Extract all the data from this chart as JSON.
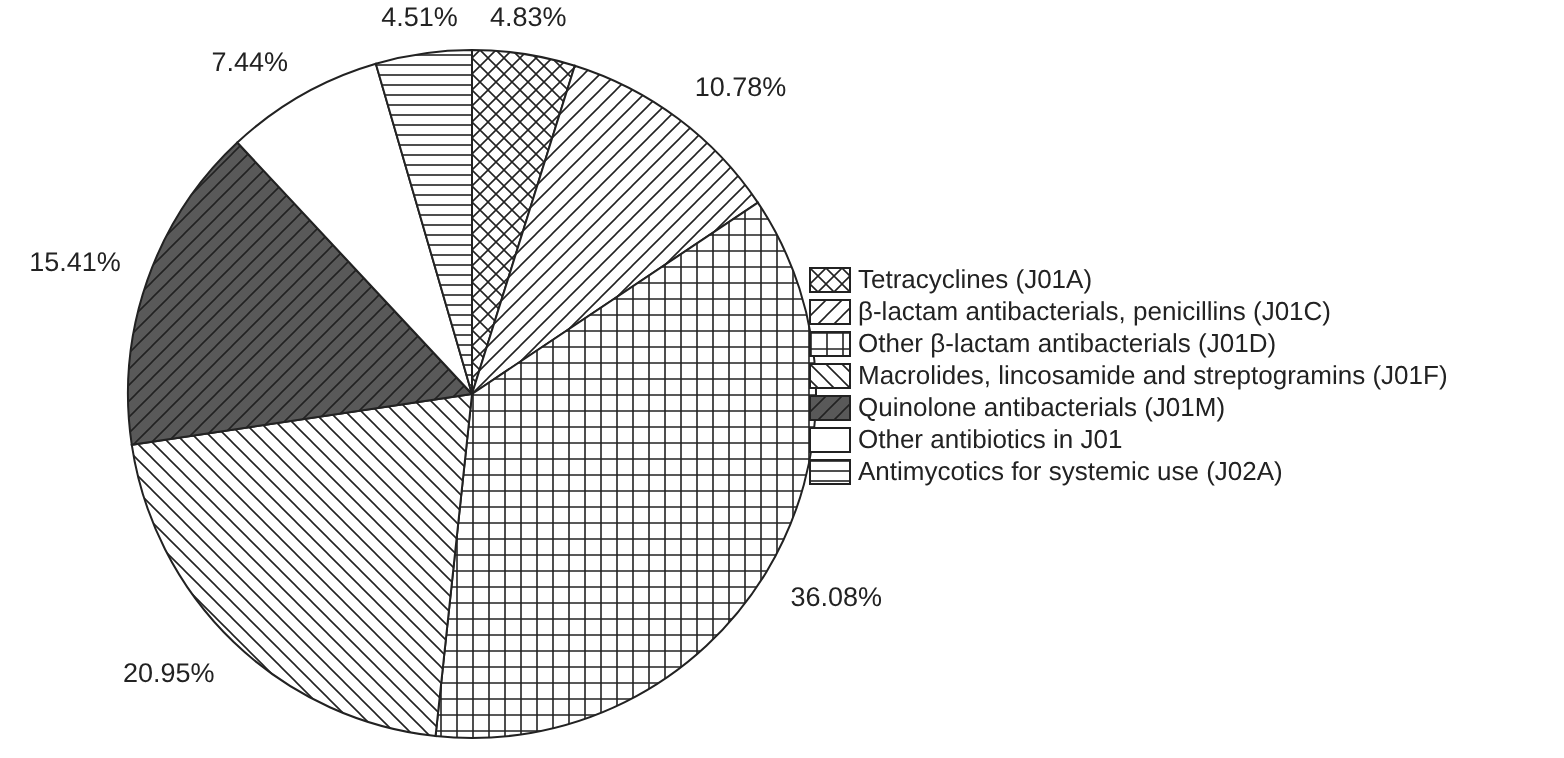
{
  "chart_data": {
    "type": "pie",
    "categories": [
      "Tetracyclines (J01A)",
      "β-lactam antibacterials, penicillins (J01C)",
      "Other β-lactam antibacterials (J01D)",
      "Macrolides, lincosamide and streptogramins (J01F)",
      "Quinolone antibacterials (J01M)",
      "Other antibiotics in J01",
      "Antimycotics for systemic use (J02A)"
    ],
    "values": [
      4.83,
      10.78,
      36.08,
      20.95,
      15.41,
      7.44,
      4.51
    ],
    "value_labels": [
      "4.83%",
      "10.78%",
      "36.08%",
      "20.95%",
      "15.41%",
      "7.44%",
      "4.51%"
    ],
    "colors": [
      "#ffffff",
      "#ffffff",
      "#ffffff",
      "#ffffff",
      "#595959",
      "#ffffff",
      "#ffffff"
    ],
    "legend": "right"
  }
}
